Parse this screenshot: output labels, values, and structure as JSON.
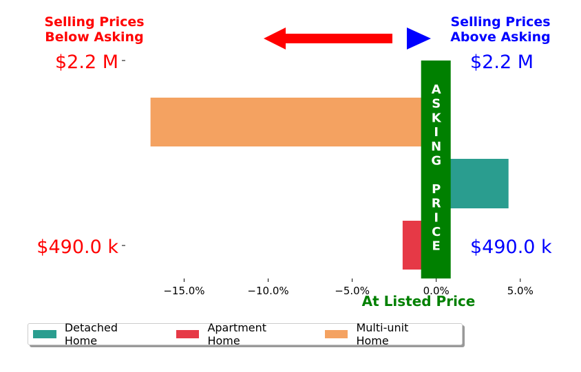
{
  "chart_data": {
    "type": "bar",
    "orientation": "horizontal",
    "categories": [
      "Multi-unit Home",
      "Detached Home",
      "Apartment Home"
    ],
    "series": [
      {
        "name": "Detached Home",
        "color": "#2a9d8f",
        "value": 4.3
      },
      {
        "name": "Apartment Home",
        "color": "#e63946",
        "value": -2.0
      },
      {
        "name": "Multi-unit Home",
        "color": "#f4a261",
        "value": -17.0
      }
    ],
    "xlim": [
      -18.5,
      5.5
    ],
    "x_ticks": [
      -15,
      -10,
      -5,
      0,
      5
    ],
    "x_tick_labels": [
      "−15.0%",
      "−10.0%",
      "−5.0%",
      "0.0%",
      "5.0%"
    ],
    "xlabel": "At Listed Price",
    "left_title": [
      "Selling Prices",
      "Below Asking"
    ],
    "right_title": [
      "Selling Prices",
      "Above Asking"
    ],
    "left_top_value": "$2.2 M",
    "left_bottom_value": "$490.0 k",
    "right_top_value": "$2.2 M",
    "right_bottom_value": "$490.0 k",
    "center_band_text": [
      "A",
      "S",
      "K",
      "I",
      "N",
      "G",
      "",
      "P",
      "R",
      "I",
      "C",
      "E"
    ],
    "colors": {
      "below": "#ff0000",
      "above": "#0000ff",
      "band": "#008000",
      "arrow_left": "#ff0000",
      "arrow_right": "#0000ff"
    },
    "legend_position": "lower-left",
    "grid": false
  }
}
